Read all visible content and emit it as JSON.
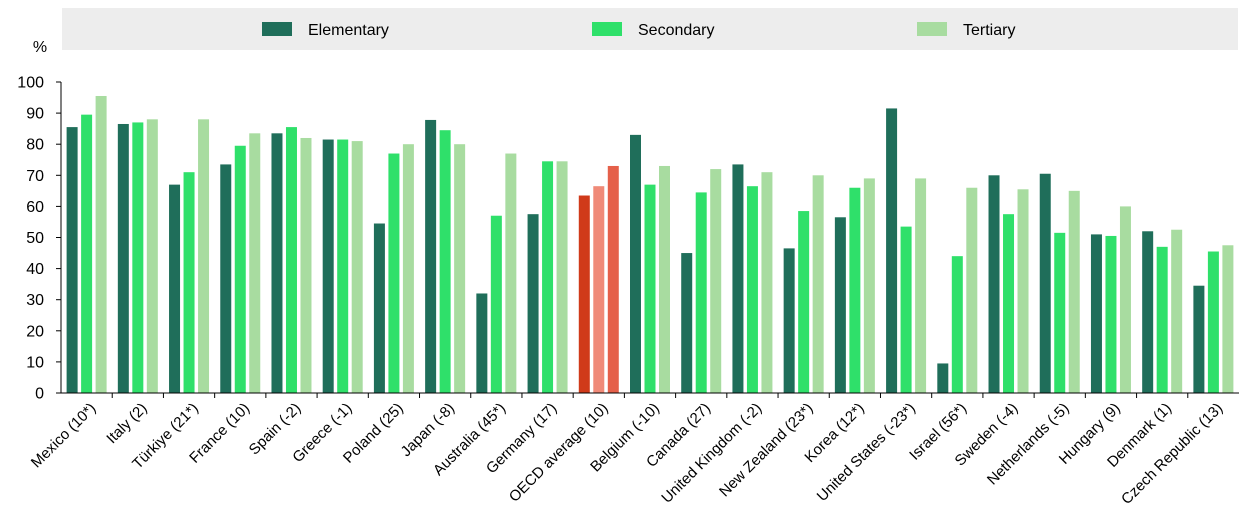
{
  "chart_data": {
    "type": "bar",
    "ylabel": "%",
    "ylim": [
      0,
      100
    ],
    "yticks": [
      0,
      10,
      20,
      30,
      40,
      50,
      60,
      70,
      80,
      90,
      100
    ],
    "grid": false,
    "legend_position": "top",
    "categories": [
      "Mexico (10*)",
      "Italy (2)",
      "Türkiye (21*)",
      "France (10)",
      "Spain (-2)",
      "Greece (-1)",
      "Poland (25)",
      "Japan (-8)",
      "Australia (45*)",
      "Germany (17)",
      "OECD average (10)",
      "Belgium (-10)",
      "Canada (27)",
      "United Kingdom (-2)",
      "New Zealand (23*)",
      "Korea (12*)",
      "United States (-23*)",
      "Israel (56*)",
      "Sweden (-4)",
      "Netherlands (-5)",
      "Hungary (9)",
      "Denmark (1)",
      "Czech Republic (13)"
    ],
    "highlight_category": "OECD average (10)",
    "series": [
      {
        "name": "Elementary",
        "color": "#1f6e5a",
        "highlight_color": "#d03a1a",
        "values": [
          85.5,
          86.5,
          67,
          73.5,
          83.5,
          81.5,
          54.5,
          87.8,
          32,
          57.5,
          63.5,
          83,
          45,
          73.5,
          46.5,
          56.5,
          91.5,
          9.5,
          70,
          70.5,
          51,
          52,
          34.5
        ]
      },
      {
        "name": "Secondary",
        "color": "#2fe06a",
        "highlight_color": "#f08a78",
        "values": [
          89.5,
          87,
          71,
          79.5,
          85.5,
          81.5,
          77,
          84.5,
          57,
          74.5,
          66.5,
          67,
          64.5,
          66.5,
          58.5,
          66,
          53.5,
          44,
          57.5,
          51.5,
          50.5,
          47,
          45.5
        ]
      },
      {
        "name": "Tertiary",
        "color": "#a8dca0",
        "highlight_color": "#e5604a",
        "values": [
          95.5,
          88,
          88,
          83.5,
          82,
          81,
          80,
          80,
          77,
          74.5,
          73,
          73,
          72,
          71,
          70,
          69,
          69,
          66,
          65.5,
          65,
          60,
          52.5,
          47.5
        ]
      }
    ]
  }
}
